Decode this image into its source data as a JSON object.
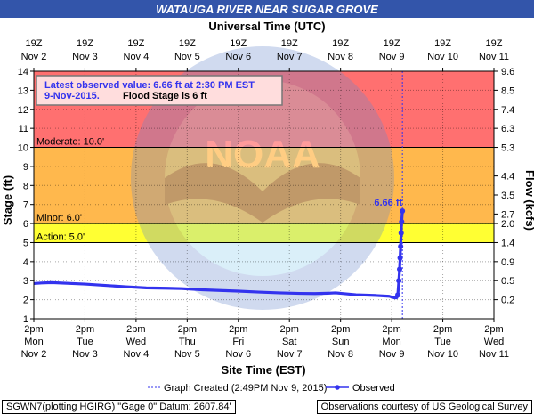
{
  "chart_data": {
    "type": "line",
    "title": "WATAUGA RIVER NEAR SUGAR GROVE",
    "top_axis_label": "Universal Time (UTC)",
    "top_ticks": [
      {
        "hour": "19Z",
        "day": "Nov 2"
      },
      {
        "hour": "19Z",
        "day": "Nov 3"
      },
      {
        "hour": "19Z",
        "day": "Nov 4"
      },
      {
        "hour": "19Z",
        "day": "Nov 5"
      },
      {
        "hour": "19Z",
        "day": "Nov 6"
      },
      {
        "hour": "19Z",
        "day": "Nov 7"
      },
      {
        "hour": "19Z",
        "day": "Nov 8"
      },
      {
        "hour": "19Z",
        "day": "Nov 9"
      },
      {
        "hour": "19Z",
        "day": "Nov 10"
      },
      {
        "hour": "19Z",
        "day": "Nov 11"
      }
    ],
    "xlabel": "Site Time (EST)",
    "x_ticks": [
      {
        "time": "2pm",
        "weekday": "Mon",
        "day": "Nov 2"
      },
      {
        "time": "2pm",
        "weekday": "Tue",
        "day": "Nov 3"
      },
      {
        "time": "2pm",
        "weekday": "Wed",
        "day": "Nov 4"
      },
      {
        "time": "2pm",
        "weekday": "Thu",
        "day": "Nov 5"
      },
      {
        "time": "2pm",
        "weekday": "Fri",
        "day": "Nov 6"
      },
      {
        "time": "2pm",
        "weekday": "Sat",
        "day": "Nov 7"
      },
      {
        "time": "2pm",
        "weekday": "Sun",
        "day": "Nov 8"
      },
      {
        "time": "2pm",
        "weekday": "Mon",
        "day": "Nov 9"
      },
      {
        "time": "2pm",
        "weekday": "Tue",
        "day": "Nov 10"
      },
      {
        "time": "2pm",
        "weekday": "Wed",
        "day": "Nov 11"
      }
    ],
    "x_tick_dates": [
      "2015-11-02",
      "2015-11-03",
      "2015-11-04",
      "2015-11-05",
      "2015-11-06",
      "2015-11-07",
      "2015-11-08",
      "2015-11-09",
      "2015-11-10",
      "2015-11-11"
    ],
    "ylabel": "Stage (ft)",
    "ylim": [
      1,
      14
    ],
    "y_ticks": [
      1,
      2,
      3,
      4,
      5,
      6,
      7,
      8,
      9,
      10,
      11,
      12,
      13,
      14
    ],
    "y2label": "Flow (kcfs)",
    "y2_ticks": [
      {
        "stage": 2.0,
        "label": "0.2"
      },
      {
        "stage": 3.0,
        "label": "0.5"
      },
      {
        "stage": 4.0,
        "label": "0.9"
      },
      {
        "stage": 5.0,
        "label": "1.4"
      },
      {
        "stage": 6.0,
        "label": "2.0"
      },
      {
        "stage": 6.5,
        "label": "2.7"
      },
      {
        "stage": 7.5,
        "label": "3.5"
      },
      {
        "stage": 8.5,
        "label": "4.4"
      },
      {
        "stage": 10.0,
        "label": "5.3"
      },
      {
        "stage": 11.0,
        "label": "6.3"
      },
      {
        "stage": 12.0,
        "label": "7.4"
      },
      {
        "stage": 13.0,
        "label": "8.5"
      },
      {
        "stage": 14.0,
        "label": "9.6"
      }
    ],
    "grid": true,
    "bands": [
      {
        "name": "major",
        "from": 10.0,
        "to": 14.0,
        "color": "#ff7070"
      },
      {
        "name": "moderate",
        "from": 6.0,
        "to": 10.0,
        "color": "#ffb84d"
      },
      {
        "name": "minor",
        "from": 5.0,
        "to": 6.0,
        "color": "#ffff33"
      },
      {
        "name": "normal",
        "from": 1.0,
        "to": 5.0,
        "color": "#ffffff"
      }
    ],
    "thresholds": [
      {
        "label": "Moderate: 10.0'",
        "stage": 10.0
      },
      {
        "label": "Minor: 6.0'",
        "stage": 6.0
      },
      {
        "label": "Action: 5.0'",
        "stage": 5.0
      }
    ],
    "graph_created_date": "2015-11-09",
    "series": [
      {
        "name": "Observed",
        "color": "#3333ee",
        "points": [
          [
            "2015-11-02",
            2.85
          ],
          [
            "2015-11-02",
            2.88
          ],
          [
            "2015-11-02",
            2.9
          ],
          [
            "2015-11-03",
            2.82
          ],
          [
            "2015-11-03",
            2.75
          ],
          [
            "2015-11-03",
            2.68
          ],
          [
            "2015-11-04",
            2.62
          ],
          [
            "2015-11-04",
            2.6
          ],
          [
            "2015-11-04",
            2.58
          ],
          [
            "2015-11-05",
            2.52
          ],
          [
            "2015-11-05",
            2.48
          ],
          [
            "2015-11-05",
            2.45
          ],
          [
            "2015-11-06",
            2.4
          ],
          [
            "2015-11-06",
            2.36
          ],
          [
            "2015-11-06",
            2.33
          ],
          [
            "2015-11-07",
            2.32
          ],
          [
            "2015-11-07",
            2.34
          ],
          [
            "2015-11-07",
            2.36
          ],
          [
            "2015-11-08",
            2.26
          ],
          [
            "2015-11-08",
            2.22
          ],
          [
            "2015-11-08",
            2.18
          ],
          [
            "2015-11-09",
            2.1
          ],
          [
            "2015-11-09",
            2.1
          ],
          [
            "2015-11-09",
            2.25
          ],
          [
            "2015-11-09",
            3.0
          ],
          [
            "2015-11-09",
            3.6
          ],
          [
            "2015-11-09",
            4.2
          ],
          [
            "2015-11-09",
            4.8
          ],
          [
            "2015-11-09",
            5.5
          ],
          [
            "2015-11-09",
            6.1
          ],
          [
            "2015-11-09",
            6.66
          ]
        ],
        "point_offsets_days": [
          0.0,
          0.15,
          0.35,
          1.0,
          1.4,
          1.8,
          2.2,
          2.6,
          2.9,
          3.3,
          3.7,
          4.0,
          4.4,
          4.8,
          5.2,
          5.5,
          5.75,
          5.9,
          6.3,
          6.7,
          6.95,
          7.05,
          7.1,
          7.12,
          7.14,
          7.155,
          7.165,
          7.175,
          7.185,
          7.195,
          7.21
        ],
        "markers_from_index": 23
      }
    ],
    "latest_value_label": "6.66 ft",
    "info_box": {
      "line1": "Latest observed value: 6.66 ft at 2:30 PM EST",
      "line2_date": "9-Nov-2015.",
      "line2_flood": "Flood Stage is 6 ft"
    },
    "legend": {
      "graph_created": "Graph Created (2:49PM Nov 9, 2015)",
      "observed": "Observed"
    },
    "watermark": "NOAA"
  },
  "footer": {
    "left": "SGWN7(plotting HGIRG) \"Gage 0\" Datum: 2607.84'",
    "right": "Observations courtesy of US Geological Survey"
  },
  "colors": {
    "title_bg": "#3355aa",
    "title_text": "#ffffff",
    "series": "#3333ee",
    "info_box_bg": "#ffdddd",
    "info_box_text": "#3333ee",
    "watermark": "#5577cc"
  }
}
